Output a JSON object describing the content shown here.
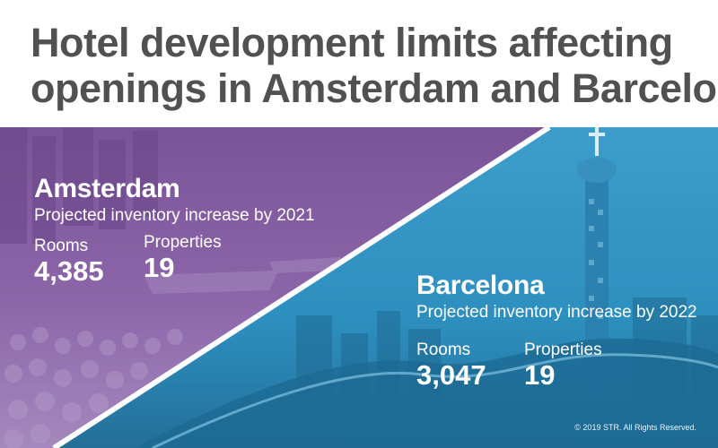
{
  "title": {
    "line1": "Hotel development limits affecting",
    "line2": "openings in Amsterdam and Barcelona"
  },
  "amsterdam": {
    "name": "Amsterdam",
    "subtitle": "Projected inventory increase by 2021",
    "rooms_label": "Rooms",
    "rooms_value": "4,385",
    "properties_label": "Properties",
    "properties_value": "19"
  },
  "barcelona": {
    "name": "Barcelona",
    "subtitle": "Projected inventory increase by 2022",
    "rooms_label": "Rooms",
    "rooms_value": "3,047",
    "properties_label": "Properties",
    "properties_value": "19"
  },
  "copyright": "© 2019 STR. All Rights Reserved.",
  "colors": {
    "title_text": "#505153",
    "amsterdam_panel": "#8b64a8",
    "barcelona_panel": "#2f93c4",
    "divider": "#ffffff"
  }
}
